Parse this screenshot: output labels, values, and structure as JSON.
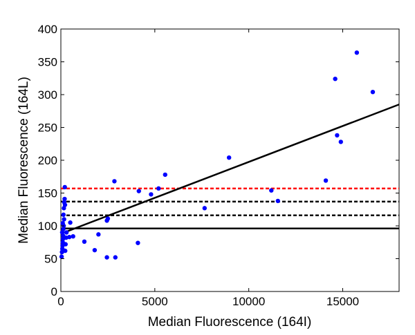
{
  "chart_data": {
    "type": "scatter",
    "title": "",
    "xlabel": "Median Fluorescence (164I)",
    "ylabel": "Median Fluorescence (164L)",
    "xlim": [
      0,
      18000
    ],
    "ylim": [
      0,
      400
    ],
    "grid": false,
    "x_ticks": [
      0,
      5000,
      10000,
      15000
    ],
    "y_ticks": [
      0,
      50,
      100,
      150,
      200,
      250,
      300,
      350,
      400
    ],
    "x_tick_labels": [
      "0",
      "5000",
      "10000",
      "15000"
    ],
    "y_tick_labels": [
      "0",
      "50",
      "100",
      "150",
      "200",
      "250",
      "300",
      "350",
      "400"
    ],
    "point_color": "#0000ff",
    "points": [
      {
        "x": 40,
        "y": 53
      },
      {
        "x": 60,
        "y": 60
      },
      {
        "x": 80,
        "y": 65
      },
      {
        "x": 90,
        "y": 70
      },
      {
        "x": 100,
        "y": 75
      },
      {
        "x": 110,
        "y": 80
      },
      {
        "x": 120,
        "y": 85
      },
      {
        "x": 70,
        "y": 90
      },
      {
        "x": 130,
        "y": 95
      },
      {
        "x": 150,
        "y": 100
      },
      {
        "x": 100,
        "y": 104
      },
      {
        "x": 170,
        "y": 110
      },
      {
        "x": 140,
        "y": 117
      },
      {
        "x": 160,
        "y": 127
      },
      {
        "x": 220,
        "y": 132
      },
      {
        "x": 180,
        "y": 136
      },
      {
        "x": 200,
        "y": 141
      },
      {
        "x": 210,
        "y": 159
      },
      {
        "x": 230,
        "y": 62
      },
      {
        "x": 250,
        "y": 72
      },
      {
        "x": 280,
        "y": 82
      },
      {
        "x": 300,
        "y": 90
      },
      {
        "x": 450,
        "y": 83
      },
      {
        "x": 500,
        "y": 105
      },
      {
        "x": 650,
        "y": 84
      },
      {
        "x": 1250,
        "y": 76
      },
      {
        "x": 1800,
        "y": 63
      },
      {
        "x": 2000,
        "y": 87
      },
      {
        "x": 2450,
        "y": 52
      },
      {
        "x": 2450,
        "y": 108
      },
      {
        "x": 2500,
        "y": 111
      },
      {
        "x": 2850,
        "y": 168
      },
      {
        "x": 2900,
        "y": 52
      },
      {
        "x": 4100,
        "y": 74
      },
      {
        "x": 4150,
        "y": 153
      },
      {
        "x": 4800,
        "y": 148
      },
      {
        "x": 5200,
        "y": 157
      },
      {
        "x": 5550,
        "y": 178
      },
      {
        "x": 7650,
        "y": 127
      },
      {
        "x": 8950,
        "y": 204
      },
      {
        "x": 11200,
        "y": 154
      },
      {
        "x": 11550,
        "y": 138
      },
      {
        "x": 14100,
        "y": 169
      },
      {
        "x": 14600,
        "y": 324
      },
      {
        "x": 14700,
        "y": 238
      },
      {
        "x": 14900,
        "y": 228
      },
      {
        "x": 15750,
        "y": 364
      },
      {
        "x": 16600,
        "y": 304
      }
    ],
    "regression_line": {
      "x": [
        0,
        18000
      ],
      "y": [
        88,
        285
      ],
      "color": "#000000",
      "style": "solid"
    },
    "horizontal_lines": [
      {
        "y": 96,
        "color": "#000000",
        "style": "solid"
      },
      {
        "y": 116,
        "color": "#000000",
        "style": "dashed"
      },
      {
        "y": 137,
        "color": "#000000",
        "style": "dashed"
      },
      {
        "y": 157,
        "color": "#ff0000",
        "style": "dashed"
      }
    ]
  }
}
